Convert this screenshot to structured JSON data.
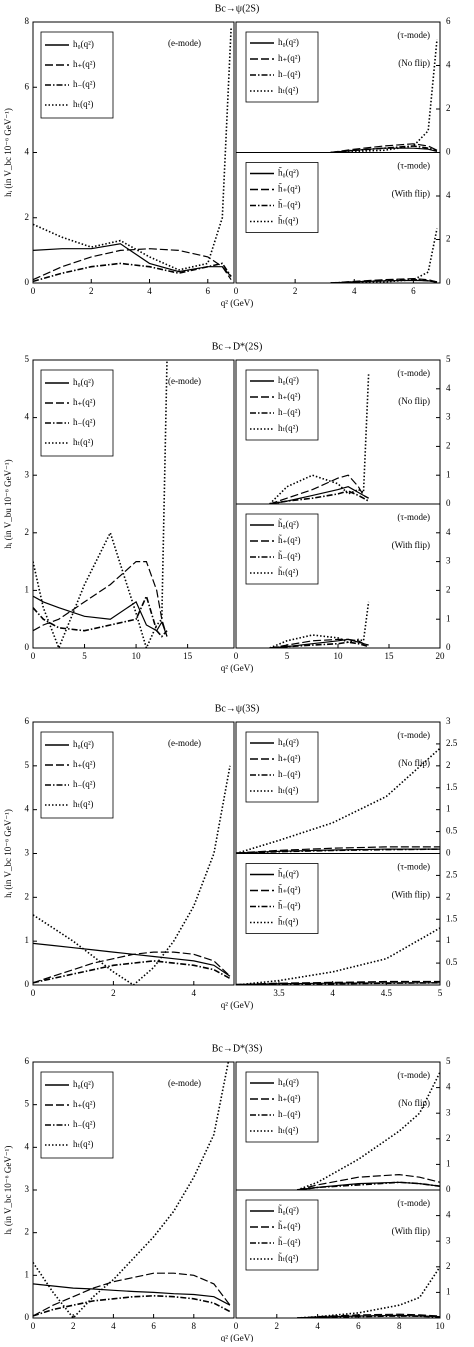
{
  "chart_data": [
    {
      "type": "line",
      "title": "Bc→ψ(2S)",
      "xlabel": "q² (GeV)",
      "ylabel": "hᵢ (in V_bc 10⁻⁶ GeV⁻¹)",
      "annotations": [
        "(e-mode)"
      ],
      "x": [
        0,
        1,
        2,
        3,
        4,
        5,
        6,
        6.5,
        6.8
      ],
      "xlim": [
        0,
        6.9
      ],
      "xticks": [
        0,
        2,
        4,
        6
      ],
      "ylim": [
        0,
        8
      ],
      "yticks": [
        0,
        2,
        4,
        6,
        8
      ],
      "series": [
        {
          "name": "h₀(q²)",
          "color": "#000",
          "dash": "solid",
          "values": [
            1.0,
            1.05,
            1.05,
            1.2,
            0.6,
            0.35,
            0.5,
            0.5,
            0.2
          ]
        },
        {
          "name": "h₊(q²)",
          "color": "#000",
          "dash": "long-dash",
          "values": [
            0.1,
            0.5,
            0.8,
            1.0,
            1.05,
            1.0,
            0.8,
            0.5,
            0.1
          ]
        },
        {
          "name": "h₋(q²)",
          "color": "#000",
          "dash": "dash-dot",
          "values": [
            0.05,
            0.3,
            0.5,
            0.6,
            0.5,
            0.3,
            0.5,
            0.6,
            0.2
          ]
        },
        {
          "name": "hₜ(q²)",
          "color": "#000",
          "dash": "dotted",
          "values": [
            1.8,
            1.4,
            1.1,
            1.3,
            0.8,
            0.4,
            0.6,
            2.0,
            7.8
          ]
        }
      ]
    },
    {
      "type": "line",
      "annotations": [
        "(τ-mode)",
        "(No flip)"
      ],
      "x": [
        3.2,
        4,
        5,
        6,
        6.5,
        6.8
      ],
      "xlim": [
        0,
        6.9
      ],
      "ylim": [
        0,
        6
      ],
      "yticks": [
        0,
        2,
        4,
        6
      ],
      "series": [
        {
          "name": "h₀(q²)",
          "color": "#000",
          "dash": "solid",
          "values": [
            0,
            0.1,
            0.2,
            0.2,
            0.15,
            0.05
          ]
        },
        {
          "name": "h₊(q²)",
          "color": "#000",
          "dash": "long-dash",
          "values": [
            0,
            0.15,
            0.3,
            0.4,
            0.3,
            0.1
          ]
        },
        {
          "name": "h₋(q²)",
          "color": "#000",
          "dash": "dash-dot",
          "values": [
            0,
            0.1,
            0.2,
            0.3,
            0.2,
            0.1
          ]
        },
        {
          "name": "hₜ(q²)",
          "color": "#000",
          "dash": "dotted",
          "values": [
            0,
            0.05,
            0.1,
            0.3,
            1.0,
            5.2
          ]
        }
      ]
    },
    {
      "type": "line",
      "annotations": [
        "(τ-mode)",
        "(With flip)"
      ],
      "x": [
        3.2,
        4,
        5,
        6,
        6.5,
        6.8
      ],
      "xlim": [
        0,
        6.9
      ],
      "xticks": [
        0,
        2,
        4,
        6
      ],
      "ylim": [
        0,
        6
      ],
      "yticks": [
        0,
        2,
        4
      ],
      "series": [
        {
          "name": "h̃₀(q²)",
          "color": "#000",
          "dash": "solid",
          "values": [
            0,
            0.05,
            0.1,
            0.12,
            0.1,
            0.03
          ]
        },
        {
          "name": "h̃₊(q²)",
          "color": "#000",
          "dash": "long-dash",
          "values": [
            0,
            0.08,
            0.15,
            0.2,
            0.15,
            0.05
          ]
        },
        {
          "name": "h̃₋(q²)",
          "color": "#000",
          "dash": "dash-dot",
          "values": [
            0,
            0.05,
            0.1,
            0.15,
            0.1,
            0.05
          ]
        },
        {
          "name": "h̃ₜ(q²)",
          "color": "#000",
          "dash": "dotted",
          "values": [
            0,
            0.02,
            0.05,
            0.15,
            0.5,
            2.5
          ]
        }
      ]
    },
    {
      "type": "line",
      "title": "Bc→D*(2S)",
      "xlabel": "q² (GeV)",
      "ylabel": "hᵢ (in V_bu 10⁻⁶ GeV⁻¹)",
      "annotations": [
        "(e-mode)"
      ],
      "x": [
        0,
        1,
        2.5,
        5,
        7.5,
        10,
        11,
        12,
        12.5,
        13
      ],
      "xlim": [
        0,
        19.5
      ],
      "xticks": [
        0,
        5,
        10,
        15
      ],
      "ylim": [
        0,
        5
      ],
      "yticks": [
        0,
        1,
        2,
        3,
        4,
        5
      ],
      "series": [
        {
          "name": "h₀(q²)",
          "color": "#000",
          "dash": "solid",
          "values": [
            0.9,
            0.8,
            0.7,
            0.55,
            0.5,
            0.8,
            0.4,
            0.3,
            0.45,
            0.2
          ]
        },
        {
          "name": "h₊(q²)",
          "color": "#000",
          "dash": "long-dash",
          "values": [
            0.3,
            0.4,
            0.5,
            0.8,
            1.1,
            1.5,
            1.5,
            1.0,
            0.5,
            0.2
          ]
        },
        {
          "name": "h₋(q²)",
          "color": "#000",
          "dash": "dash-dot",
          "values": [
            0.7,
            0.5,
            0.35,
            0.3,
            0.4,
            0.5,
            0.9,
            0.3,
            0.2,
            0.3
          ]
        },
        {
          "name": "hₜ(q²)",
          "color": "#000",
          "dash": "dotted",
          "values": [
            1.5,
            0.7,
            0.0,
            1.1,
            2.0,
            0.6,
            0.0,
            0.4,
            0.5,
            5.0
          ]
        }
      ]
    },
    {
      "type": "line",
      "annotations": [
        "(τ-mode)",
        "(No flip)"
      ],
      "x": [
        3.3,
        5,
        7.5,
        10,
        11,
        12,
        12.5,
        13
      ],
      "xlim": [
        0,
        20
      ],
      "ylim": [
        0,
        5
      ],
      "yticks": [
        0,
        1,
        2,
        3,
        4,
        5
      ],
      "series": [
        {
          "name": "h₀(q²)",
          "color": "#000",
          "dash": "solid",
          "values": [
            0,
            0.1,
            0.3,
            0.5,
            0.6,
            0.4,
            0.3,
            0.2
          ]
        },
        {
          "name": "h₊(q²)",
          "color": "#000",
          "dash": "long-dash",
          "values": [
            0,
            0.2,
            0.5,
            0.9,
            1.0,
            0.6,
            0.3,
            0.2
          ]
        },
        {
          "name": "h₋(q²)",
          "color": "#000",
          "dash": "dash-dot",
          "values": [
            0,
            0.1,
            0.2,
            0.35,
            0.45,
            0.3,
            0.2,
            0.1
          ]
        },
        {
          "name": "hₜ(q²)",
          "color": "#000",
          "dash": "dotted",
          "values": [
            0,
            0.6,
            1.0,
            0.7,
            0.35,
            0.5,
            0.4,
            4.5
          ]
        }
      ]
    },
    {
      "type": "line",
      "annotations": [
        "(τ-mode)",
        "(With flip)"
      ],
      "x": [
        3.3,
        5,
        7.5,
        10,
        11,
        12,
        12.5,
        13
      ],
      "xlim": [
        0,
        20
      ],
      "xticks": [
        0,
        5,
        10,
        15,
        20
      ],
      "ylim": [
        0,
        5
      ],
      "yticks": [
        0,
        1,
        2,
        3,
        4
      ],
      "series": [
        {
          "name": "h̃₀(q²)",
          "color": "#000",
          "dash": "solid",
          "values": [
            0,
            0.05,
            0.15,
            0.25,
            0.3,
            0.2,
            0.15,
            0.1
          ]
        },
        {
          "name": "h̃₊(q²)",
          "color": "#000",
          "dash": "long-dash",
          "values": [
            0,
            0.1,
            0.25,
            0.3,
            0.3,
            0.25,
            0.15,
            0.1
          ]
        },
        {
          "name": "h̃₋(q²)",
          "color": "#000",
          "dash": "dash-dot",
          "values": [
            0,
            0.05,
            0.1,
            0.15,
            0.2,
            0.15,
            0.1,
            0.05
          ]
        },
        {
          "name": "h̃ₜ(q²)",
          "color": "#000",
          "dash": "dotted",
          "values": [
            0,
            0.25,
            0.45,
            0.35,
            0.2,
            0.3,
            0.25,
            1.6
          ]
        }
      ]
    },
    {
      "type": "line",
      "title": "Bc→ψ(3S)",
      "xlabel": "q² (GeV)",
      "ylabel": "hᵢ (in V_bc 10⁻⁶ GeV⁻¹)",
      "annotations": [
        "(e-mode)"
      ],
      "x": [
        0,
        0.5,
        1,
        1.5,
        2,
        2.5,
        3,
        3.5,
        4,
        4.5,
        4.9
      ],
      "xlim": [
        0,
        5
      ],
      "xticks": [
        0,
        2,
        4
      ],
      "ylim": [
        0,
        6
      ],
      "yticks": [
        0,
        1,
        2,
        3,
        4,
        5,
        6
      ],
      "series": [
        {
          "name": "h₀(q²)",
          "color": "#000",
          "dash": "solid",
          "values": [
            0.95,
            0.9,
            0.85,
            0.8,
            0.75,
            0.7,
            0.65,
            0.6,
            0.55,
            0.45,
            0.2
          ]
        },
        {
          "name": "h₊(q²)",
          "color": "#000",
          "dash": "long-dash",
          "values": [
            0.05,
            0.2,
            0.35,
            0.5,
            0.6,
            0.7,
            0.75,
            0.75,
            0.7,
            0.55,
            0.2
          ]
        },
        {
          "name": "h₋(q²)",
          "color": "#000",
          "dash": "dash-dot",
          "values": [
            0.05,
            0.15,
            0.25,
            0.35,
            0.45,
            0.5,
            0.55,
            0.5,
            0.45,
            0.35,
            0.15
          ]
        },
        {
          "name": "hₜ(q²)",
          "color": "#000",
          "dash": "dotted",
          "values": [
            1.6,
            1.3,
            1.0,
            0.65,
            0.3,
            0.0,
            0.4,
            1.0,
            1.8,
            3.0,
            5.0
          ]
        }
      ]
    },
    {
      "type": "line",
      "annotations": [
        "(τ-mode)",
        "(No flip)"
      ],
      "x": [
        3.1,
        3.5,
        4,
        4.5,
        5
      ],
      "xlim": [
        3.1,
        5
      ],
      "ylim": [
        0,
        3
      ],
      "yticks": [
        0,
        0.5,
        1,
        1.5,
        2,
        2.5,
        3
      ],
      "series": [
        {
          "name": "h₀(q²)",
          "color": "#000",
          "dash": "solid",
          "values": [
            0.01,
            0.05,
            0.08,
            0.1,
            0.1
          ]
        },
        {
          "name": "h₊(q²)",
          "color": "#000",
          "dash": "long-dash",
          "values": [
            0.01,
            0.07,
            0.12,
            0.15,
            0.15
          ]
        },
        {
          "name": "h₋(q²)",
          "color": "#000",
          "dash": "dash-dot",
          "values": [
            0.01,
            0.04,
            0.07,
            0.09,
            0.1
          ]
        },
        {
          "name": "hₜ(q²)",
          "color": "#000",
          "dash": "dotted",
          "values": [
            0,
            0.3,
            0.7,
            1.3,
            2.4
          ]
        }
      ]
    },
    {
      "type": "line",
      "annotations": [
        "(τ-mode)",
        "(With flip)"
      ],
      "x": [
        3.1,
        3.5,
        4,
        4.5,
        5
      ],
      "xlim": [
        3.1,
        5
      ],
      "xticks": [
        3.5,
        4,
        4.5,
        5
      ],
      "ylim": [
        0,
        3
      ],
      "yticks": [
        0,
        0.5,
        1,
        1.5,
        2,
        2.5
      ],
      "series": [
        {
          "name": "h̃₀(q²)",
          "color": "#000",
          "dash": "solid",
          "values": [
            0.01,
            0.03,
            0.04,
            0.05,
            0.05
          ]
        },
        {
          "name": "h̃₊(q²)",
          "color": "#000",
          "dash": "long-dash",
          "values": [
            0.01,
            0.04,
            0.06,
            0.08,
            0.08
          ]
        },
        {
          "name": "h̃₋(q²)",
          "color": "#000",
          "dash": "dash-dot",
          "values": [
            0.01,
            0.02,
            0.03,
            0.04,
            0.05
          ]
        },
        {
          "name": "h̃ₜ(q²)",
          "color": "#000",
          "dash": "dotted",
          "values": [
            0,
            0.1,
            0.3,
            0.6,
            1.3
          ]
        }
      ]
    },
    {
      "type": "line",
      "title": "Bc→D*(3S)",
      "xlabel": "q² (GeV)",
      "ylabel": "hᵢ (in V_bc 10⁻⁶ GeV⁻¹)",
      "annotations": [
        "(e-mode)"
      ],
      "x": [
        0,
        1,
        2,
        3,
        4,
        5,
        6,
        7,
        8,
        9,
        9.8
      ],
      "xlim": [
        0,
        10
      ],
      "xticks": [
        0,
        2,
        4,
        6,
        8
      ],
      "ylim": [
        0,
        6
      ],
      "yticks": [
        0,
        1,
        2,
        3,
        4,
        5,
        6
      ],
      "series": [
        {
          "name": "h₀(q²)",
          "color": "#000",
          "dash": "solid",
          "values": [
            0.8,
            0.75,
            0.7,
            0.68,
            0.65,
            0.62,
            0.6,
            0.57,
            0.55,
            0.5,
            0.3
          ]
        },
        {
          "name": "h₊(q²)",
          "color": "#000",
          "dash": "long-dash",
          "values": [
            0.05,
            0.3,
            0.5,
            0.7,
            0.85,
            0.95,
            1.05,
            1.05,
            1.0,
            0.8,
            0.3
          ]
        },
        {
          "name": "h₋(q²)",
          "color": "#000",
          "dash": "dash-dot",
          "values": [
            0.05,
            0.2,
            0.3,
            0.4,
            0.45,
            0.5,
            0.52,
            0.5,
            0.45,
            0.35,
            0.15
          ]
        },
        {
          "name": "hₜ(q²)",
          "color": "#000",
          "dash": "dotted",
          "values": [
            1.3,
            0.6,
            0.0,
            0.5,
            0.9,
            1.4,
            1.9,
            2.5,
            3.3,
            4.3,
            6.2
          ]
        }
      ]
    },
    {
      "type": "line",
      "annotations": [
        "(τ-mode)",
        "(No flip)"
      ],
      "x": [
        3,
        4,
        6,
        8,
        9,
        10
      ],
      "xlim": [
        0,
        10
      ],
      "ylim": [
        0,
        5
      ],
      "yticks": [
        0,
        1,
        2,
        3,
        4,
        5
      ],
      "series": [
        {
          "name": "h₀(q²)",
          "color": "#000",
          "dash": "solid",
          "values": [
            0,
            0.1,
            0.25,
            0.3,
            0.25,
            0.15
          ]
        },
        {
          "name": "h₊(q²)",
          "color": "#000",
          "dash": "long-dash",
          "values": [
            0,
            0.2,
            0.5,
            0.6,
            0.5,
            0.3
          ]
        },
        {
          "name": "h₋(q²)",
          "color": "#000",
          "dash": "dash-dot",
          "values": [
            0,
            0.1,
            0.2,
            0.3,
            0.25,
            0.15
          ]
        },
        {
          "name": "hₜ(q²)",
          "color": "#000",
          "dash": "dotted",
          "values": [
            0,
            0.3,
            1.2,
            2.3,
            3.0,
            4.6
          ]
        }
      ]
    },
    {
      "type": "line",
      "annotations": [
        "(τ-mode)",
        "(With flip)"
      ],
      "x": [
        3,
        4,
        6,
        8,
        9,
        10
      ],
      "xlim": [
        0,
        10
      ],
      "xticks": [
        0,
        2,
        4,
        6,
        8,
        10
      ],
      "ylim": [
        0,
        5
      ],
      "yticks": [
        0,
        1,
        2,
        3,
        4
      ],
      "series": [
        {
          "name": "h̃₀(q²)",
          "color": "#000",
          "dash": "solid",
          "values": [
            0,
            0.03,
            0.08,
            0.1,
            0.08,
            0.05
          ]
        },
        {
          "name": "h̃₊(q²)",
          "color": "#000",
          "dash": "long-dash",
          "values": [
            0,
            0.05,
            0.12,
            0.15,
            0.12,
            0.08
          ]
        },
        {
          "name": "h̃₋(q²)",
          "color": "#000",
          "dash": "dash-dot",
          "values": [
            0,
            0.03,
            0.06,
            0.08,
            0.07,
            0.04
          ]
        },
        {
          "name": "h̃ₜ(q²)",
          "color": "#000",
          "dash": "dotted",
          "values": [
            0,
            0.05,
            0.2,
            0.5,
            0.8,
            2.0
          ]
        }
      ]
    }
  ]
}
